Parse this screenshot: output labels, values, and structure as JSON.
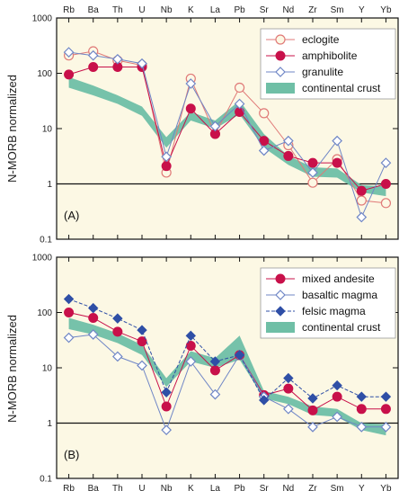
{
  "chart_data": [
    {
      "panel_label": "(A)",
      "type": "line",
      "ylabel": "N-MORB normalized",
      "yscale": "log",
      "ylim": [
        0.1,
        1000
      ],
      "yticks": [
        "0.1",
        "1",
        "10",
        "100",
        "1000"
      ],
      "reference_line": 1,
      "categories": [
        "Rb",
        "Ba",
        "Th",
        "U",
        "Nb",
        "K",
        "La",
        "Pb",
        "Sr",
        "Nd",
        "Zr",
        "Sm",
        "Y",
        "Yb"
      ],
      "xlabels_position": "top",
      "legend_position": "top-right",
      "series": [
        {
          "name": "eclogite",
          "marker": "open-circle",
          "color": "#e07a78",
          "values": [
            210,
            250,
            170,
            140,
            1.6,
            80,
            8,
            55,
            19,
            5,
            1.05,
            2.8,
            0.5,
            0.45
          ]
        },
        {
          "name": "amphibolite",
          "marker": "filled-circle",
          "color": "#c8104a",
          "values": [
            95,
            130,
            130,
            130,
            2.1,
            23,
            8,
            20,
            6,
            3.2,
            2.4,
            2.4,
            0.75,
            1.0
          ]
        },
        {
          "name": "granulite",
          "marker": "open-diamond",
          "color": "#6f86c6",
          "values": [
            240,
            210,
            180,
            150,
            3.1,
            65,
            11,
            28,
            4,
            6,
            1.6,
            6,
            0.25,
            2.4
          ]
        }
      ],
      "band": {
        "name": "continental crust",
        "color": "#6fbfa6",
        "upper": [
          85,
          60,
          40,
          25,
          7,
          20,
          14,
          32,
          8,
          3.2,
          2.0,
          1.9,
          0.95,
          0.9
        ],
        "lower": [
          55,
          40,
          28,
          17,
          4.5,
          14,
          10,
          18,
          4.5,
          2.2,
          1.35,
          1.3,
          0.7,
          0.6
        ]
      }
    },
    {
      "panel_label": "(B)",
      "type": "line",
      "ylabel": "N-MORB normalized",
      "yscale": "log",
      "ylim": [
        0.1,
        1000
      ],
      "yticks": [
        "0.1",
        "1",
        "10",
        "100",
        "1000"
      ],
      "reference_line": 1,
      "categories": [
        "Rb",
        "Ba",
        "Th",
        "U",
        "Nb",
        "K",
        "La",
        "Pb",
        "Sr",
        "Nd",
        "Zr",
        "Sm",
        "Y",
        "Yb"
      ],
      "xlabels_position": "bottom",
      "legend_position": "top-right",
      "series": [
        {
          "name": "mixed andesite",
          "marker": "filled-circle",
          "color": "#c8104a",
          "values": [
            100,
            80,
            45,
            30,
            2.0,
            25,
            9,
            17,
            3.2,
            4.2,
            1.7,
            3.0,
            1.8,
            1.8
          ]
        },
        {
          "name": "basaltic magma",
          "marker": "open-diamond",
          "color": "#6f86c6",
          "values": [
            35,
            40,
            16,
            11,
            0.75,
            13,
            3.3,
            17,
            3.0,
            1.8,
            0.85,
            1.3,
            0.85,
            0.85
          ]
        },
        {
          "name": "felsic magma",
          "marker": "filled-diamond",
          "color": "#2f4fa6",
          "values": [
            175,
            120,
            78,
            48,
            3.6,
            38,
            13,
            17,
            2.6,
            6.5,
            2.8,
            4.8,
            3.0,
            3.0
          ]
        }
      ],
      "band": {
        "name": "continental crust",
        "color": "#6fbfa6",
        "upper": [
          80,
          60,
          42,
          26,
          6.5,
          20,
          15,
          38,
          3.8,
          3.0,
          2.0,
          1.8,
          1.0,
          0.95
        ],
        "lower": [
          50,
          40,
          28,
          17,
          4.5,
          13,
          10,
          14,
          2.8,
          2.2,
          1.4,
          1.3,
          0.75,
          0.6
        ]
      }
    }
  ]
}
